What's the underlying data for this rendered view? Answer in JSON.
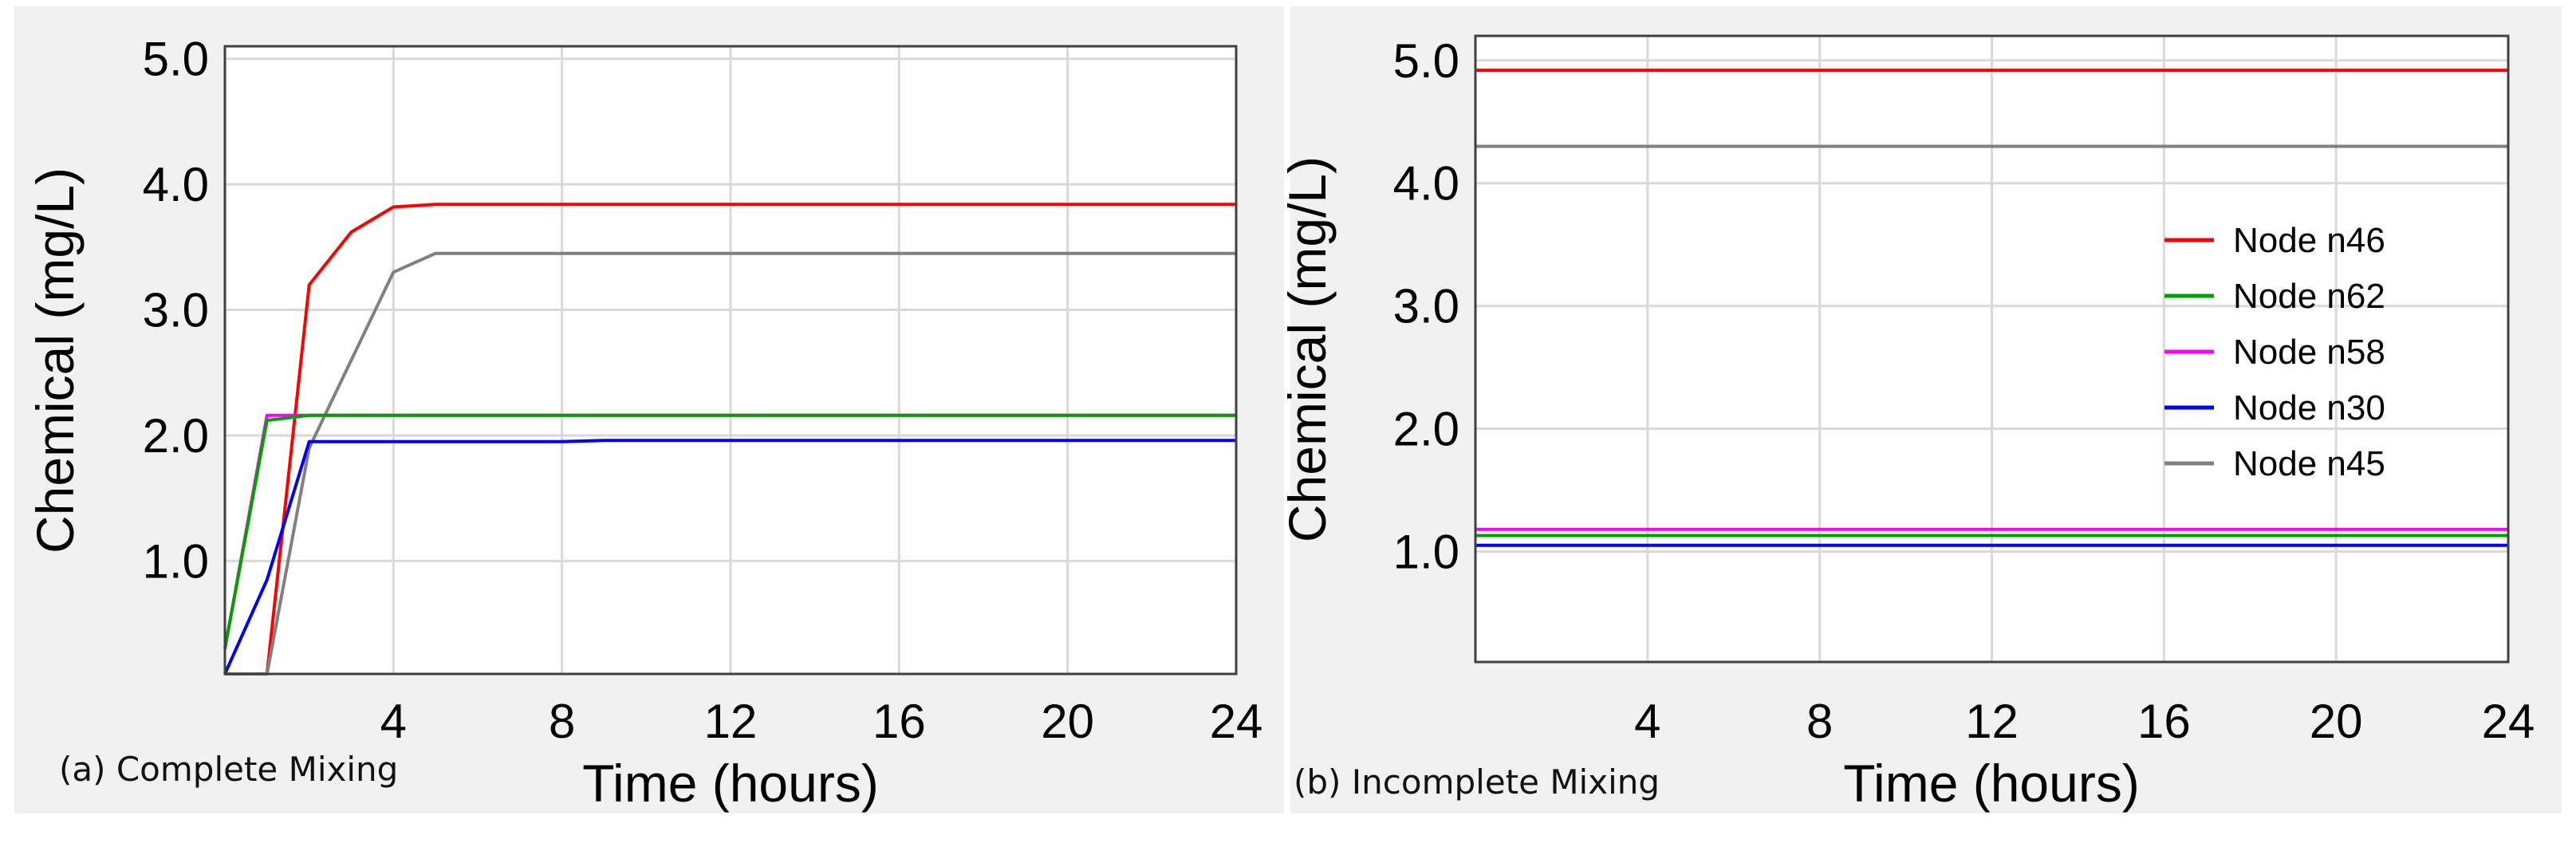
{
  "chart_data": [
    {
      "type": "line",
      "panel_label": "(a) Complete Mixing",
      "xlabel": "Time (hours)",
      "ylabel": "Chemical (mg/L)",
      "xlim": [
        0,
        24
      ],
      "ylim": [
        0.1,
        5.1
      ],
      "xticks": [
        4,
        8,
        12,
        16,
        20,
        24
      ],
      "xtick_labels": [
        "4",
        "8",
        "12",
        "16",
        "20",
        "24"
      ],
      "yticks": [
        1.0,
        2.0,
        3.0,
        4.0,
        5.0
      ],
      "ytick_labels": [
        "1.0",
        "2.0",
        "3.0",
        "4.0",
        "5.0"
      ],
      "grid": true,
      "legend": null,
      "series": [
        {
          "color": "#ff0000",
          "x": [
            0,
            1,
            2,
            3,
            4,
            5,
            24
          ],
          "y": [
            0.1,
            0.1,
            3.2,
            3.62,
            3.82,
            3.84,
            3.84
          ]
        },
        {
          "color": "#808080",
          "x": [
            0,
            1,
            2,
            4,
            5,
            24
          ],
          "y": [
            0.1,
            0.1,
            1.9,
            3.3,
            3.45,
            3.45
          ]
        },
        {
          "color": "#ff00ff",
          "x": [
            0,
            1,
            24
          ],
          "y": [
            0.3,
            2.16,
            2.16
          ]
        },
        {
          "color": "#00a000",
          "x": [
            0,
            1,
            2,
            24
          ],
          "y": [
            0.3,
            2.12,
            2.16,
            2.16
          ]
        },
        {
          "color": "#0000ff",
          "x": [
            0,
            1,
            2,
            8,
            9,
            24
          ],
          "y": [
            0.1,
            0.85,
            1.95,
            1.95,
            1.96,
            1.96
          ]
        }
      ]
    },
    {
      "type": "line",
      "panel_label": "(b) Incomplete Mixing",
      "xlabel": "Time (hours)",
      "ylabel": "Chemical (mg/L)",
      "xlim": [
        0,
        24
      ],
      "ylim": [
        0.1,
        5.2
      ],
      "xticks": [
        4,
        8,
        12,
        16,
        20,
        24
      ],
      "xtick_labels": [
        "4",
        "8",
        "12",
        "16",
        "20",
        "24"
      ],
      "yticks": [
        1.0,
        2.0,
        3.0,
        4.0,
        5.0
      ],
      "ytick_labels": [
        "1.0",
        "2.0",
        "3.0",
        "4.0",
        "5.0"
      ],
      "grid": true,
      "legend": "right",
      "series": [
        {
          "name": "Node n46",
          "color": "#ff0000",
          "x": [
            0,
            24
          ],
          "y": [
            4.92,
            4.92
          ]
        },
        {
          "name": "Node n62",
          "color": "#00a000",
          "x": [
            0,
            24
          ],
          "y": [
            1.13,
            1.13
          ]
        },
        {
          "name": "Node n58",
          "color": "#ff00ff",
          "x": [
            0,
            24
          ],
          "y": [
            1.18,
            1.18
          ]
        },
        {
          "name": "Node n30",
          "color": "#0000ff",
          "x": [
            0,
            24
          ],
          "y": [
            1.05,
            1.05
          ]
        },
        {
          "name": "Node n45",
          "color": "#808080",
          "x": [
            0,
            24
          ],
          "y": [
            4.3,
            4.3
          ]
        }
      ]
    }
  ]
}
